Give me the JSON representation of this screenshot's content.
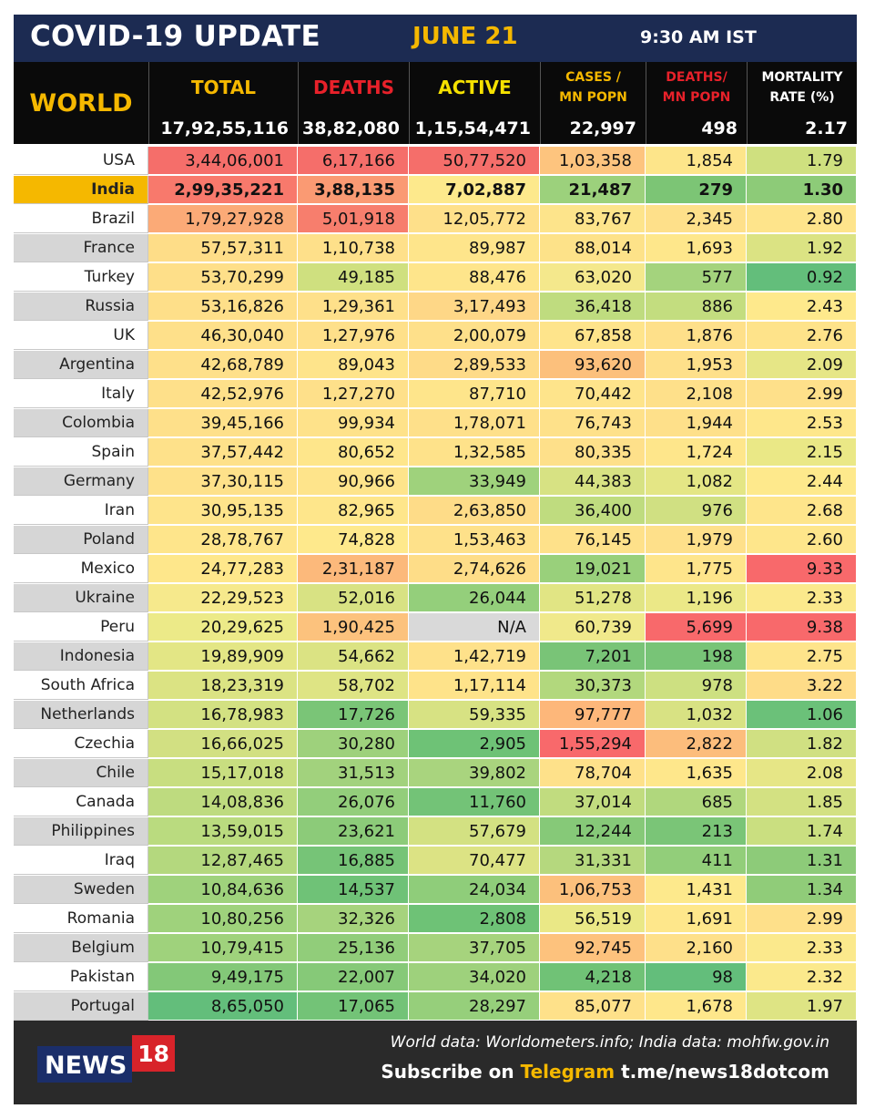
{
  "header": {
    "title": "COVID-19 UPDATE",
    "date": "JUNE 21",
    "time": "9:30 AM IST"
  },
  "world": {
    "label": "WORLD",
    "columns": {
      "total": "TOTAL",
      "deaths": "DEATHS",
      "active": "ACTIVE",
      "cases_mn_1": "CASES /",
      "cases_mn_2": "MN POPN",
      "deaths_mn_1": "DEATHS/",
      "deaths_mn_2": "MN POPN",
      "mortality_1": "MORTALITY",
      "mortality_2": "RATE (%)"
    },
    "values": {
      "total": "17,92,55,116",
      "deaths": "38,82,080",
      "active": "1,15,54,471",
      "cases_mn": "22,997",
      "deaths_mn": "498",
      "mortality": "2.17"
    }
  },
  "rows": [
    {
      "country": "USA",
      "total": "3,44,06,001",
      "deaths": "6,17,166",
      "active": "50,77,520",
      "cases_mn": "1,03,358",
      "deaths_mn": "1,854",
      "mortality": "1.79",
      "bg": [
        "#f56e6a",
        "#f56e6a",
        "#f56e6a",
        "#fdc47e",
        "#fde58a",
        "#cfe07f"
      ]
    },
    {
      "country": "India",
      "total": "2,99,35,221",
      "deaths": "3,88,135",
      "active": "7,02,887",
      "cases_mn": "21,487",
      "deaths_mn": "279",
      "mortality": "1.30",
      "bg": [
        "#f8796c",
        "#fa9a73",
        "#fde98c",
        "#9cd17c",
        "#7cc575",
        "#8dcb78"
      ]
    },
    {
      "country": "Brazil",
      "total": "1,79,27,928",
      "deaths": "5,01,918",
      "active": "12,05,772",
      "cases_mn": "83,767",
      "deaths_mn": "2,345",
      "mortality": "2.80",
      "bg": [
        "#fbaa77",
        "#f77e6d",
        "#fee08a",
        "#fde48b",
        "#fee08a",
        "#fee48b"
      ]
    },
    {
      "country": "France",
      "total": "57,57,311",
      "deaths": "1,10,738",
      "active": "89,987",
      "cases_mn": "88,014",
      "deaths_mn": "1,693",
      "mortality": "1.92",
      "bg": [
        "#fedd88",
        "#fee08a",
        "#fee58b",
        "#fde289",
        "#fee78b",
        "#dbe383"
      ]
    },
    {
      "country": "Turkey",
      "total": "53,70,299",
      "deaths": "49,185",
      "active": "88,476",
      "cases_mn": "63,020",
      "deaths_mn": "577",
      "mortality": "0.92",
      "bg": [
        "#fedf89",
        "#cfe07f",
        "#fee58b",
        "#f4e88c",
        "#a4d37d",
        "#63be7b"
      ]
    },
    {
      "country": "Russia",
      "total": "53,16,826",
      "deaths": "1,29,361",
      "active": "3,17,493",
      "cases_mn": "36,418",
      "deaths_mn": "886",
      "mortality": "2.43",
      "bg": [
        "#fedf89",
        "#fee08a",
        "#fed787",
        "#bfdc7f",
        "#c3dd7f",
        "#fee98c"
      ]
    },
    {
      "country": "UK",
      "total": "46,30,040",
      "deaths": "1,27,976",
      "active": "2,00,079",
      "cases_mn": "67,858",
      "deaths_mn": "1,876",
      "mortality": "2.76",
      "bg": [
        "#fee08a",
        "#fee08a",
        "#fee08a",
        "#fee48b",
        "#fee08a",
        "#fee38a"
      ]
    },
    {
      "country": "Argentina",
      "total": "42,68,789",
      "deaths": "89,043",
      "active": "2,89,533",
      "cases_mn": "93,620",
      "deaths_mn": "1,953",
      "mortality": "2.09",
      "bg": [
        "#fee08a",
        "#fee48b",
        "#fedb88",
        "#fcc07c",
        "#fee08a",
        "#e6e686"
      ]
    },
    {
      "country": "Italy",
      "total": "42,52,976",
      "deaths": "1,27,270",
      "active": "87,710",
      "cases_mn": "70,442",
      "deaths_mn": "2,108",
      "mortality": "2.99",
      "bg": [
        "#fee08a",
        "#fee08a",
        "#fee58b",
        "#fee48b",
        "#fee08a",
        "#fee08a"
      ]
    },
    {
      "country": "Colombia",
      "total": "39,45,166",
      "deaths": "99,934",
      "active": "1,78,071",
      "cases_mn": "76,743",
      "deaths_mn": "1,944",
      "mortality": "2.53",
      "bg": [
        "#fee08a",
        "#fee28a",
        "#fee08a",
        "#fee18a",
        "#fee08a",
        "#fee78b"
      ]
    },
    {
      "country": "Spain",
      "total": "37,57,442",
      "deaths": "80,652",
      "active": "1,32,585",
      "cases_mn": "80,335",
      "deaths_mn": "1,724",
      "mortality": "2.15",
      "bg": [
        "#fee18a",
        "#fee68b",
        "#fee28a",
        "#fee08a",
        "#fee68b",
        "#eae886"
      ]
    },
    {
      "country": "Germany",
      "total": "37,30,115",
      "deaths": "90,966",
      "active": "33,949",
      "cases_mn": "44,383",
      "deaths_mn": "1,082",
      "mortality": "2.44",
      "bg": [
        "#fee18a",
        "#fee48b",
        "#9fd27c",
        "#d7e283",
        "#e4e685",
        "#fee98c"
      ]
    },
    {
      "country": "Iran",
      "total": "30,95,135",
      "deaths": "82,965",
      "active": "2,63,850",
      "cases_mn": "36,400",
      "deaths_mn": "976",
      "mortality": "2.68",
      "bg": [
        "#fee48b",
        "#fee68b",
        "#fedc88",
        "#bfdc7f",
        "#d0e082",
        "#fee58b"
      ]
    },
    {
      "country": "Poland",
      "total": "28,78,767",
      "deaths": "74,828",
      "active": "1,53,463",
      "cases_mn": "76,145",
      "deaths_mn": "1,979",
      "mortality": "2.60",
      "bg": [
        "#fee58b",
        "#fee98c",
        "#fee18a",
        "#fee18a",
        "#fee08a",
        "#fee68b"
      ]
    },
    {
      "country": "Mexico",
      "total": "24,77,283",
      "deaths": "2,31,187",
      "active": "2,74,626",
      "cases_mn": "19,021",
      "deaths_mn": "1,775",
      "mortality": "9.33",
      "bg": [
        "#fee78b",
        "#fcb97b",
        "#fedd88",
        "#99d07b",
        "#fee58b",
        "#f8696b"
      ]
    },
    {
      "country": "Ukraine",
      "total": "22,29,523",
      "deaths": "52,016",
      "active": "26,044",
      "cases_mn": "51,278",
      "deaths_mn": "1,196",
      "mortality": "2.33",
      "bg": [
        "#f6e98c",
        "#d8e283",
        "#94cf7b",
        "#e1e584",
        "#ebe887",
        "#fbe98c"
      ]
    },
    {
      "country": "Peru",
      "total": "20,29,625",
      "deaths": "1,90,425",
      "active": "N/A",
      "cases_mn": "60,739",
      "deaths_mn": "5,699",
      "mortality": "9.38",
      "bg": [
        "#ecea88",
        "#fcc27d",
        "#d9d9d9",
        "#f0e98b",
        "#f8696b",
        "#f8696b"
      ]
    },
    {
      "country": "Indonesia",
      "total": "19,89,909",
      "deaths": "54,662",
      "active": "1,42,719",
      "cases_mn": "7,201",
      "deaths_mn": "198",
      "mortality": "2.75",
      "bg": [
        "#e3e685",
        "#dbe383",
        "#fee18a",
        "#79c477",
        "#78c477",
        "#fee48b"
      ]
    },
    {
      "country": "South Africa",
      "total": "18,23,319",
      "deaths": "58,702",
      "active": "1,17,114",
      "cases_mn": "30,373",
      "deaths_mn": "978",
      "mortality": "3.22",
      "bg": [
        "#dbe383",
        "#dee484",
        "#fee38a",
        "#b2d87d",
        "#cde081",
        "#fedc88"
      ]
    },
    {
      "country": "Netherlands",
      "total": "16,78,983",
      "deaths": "17,726",
      "active": "59,335",
      "cases_mn": "97,777",
      "deaths_mn": "1,032",
      "mortality": "1.06",
      "bg": [
        "#d3e182",
        "#7ac577",
        "#d7e283",
        "#fdb77a",
        "#d8e283",
        "#6bc179"
      ]
    },
    {
      "country": "Czechia",
      "total": "16,66,025",
      "deaths": "30,280",
      "active": "2,905",
      "cases_mn": "1,55,294",
      "deaths_mn": "2,822",
      "mortality": "1.82",
      "bg": [
        "#d2e082",
        "#9ed17c",
        "#6ec276",
        "#f8696b",
        "#fcbd7c",
        "#d0e082"
      ]
    },
    {
      "country": "Chile",
      "total": "15,17,018",
      "deaths": "31,513",
      "active": "39,802",
      "cases_mn": "78,704",
      "deaths_mn": "1,635",
      "mortality": "2.08",
      "bg": [
        "#c8de80",
        "#a2d27d",
        "#a9d47e",
        "#fee18a",
        "#fee78b",
        "#e6e686"
      ]
    },
    {
      "country": "Canada",
      "total": "14,08,836",
      "deaths": "26,076",
      "active": "11,760",
      "cases_mn": "37,014",
      "deaths_mn": "685",
      "mortality": "1.85",
      "bg": [
        "#bedb7f",
        "#93ce7b",
        "#73c377",
        "#c1dc7f",
        "#b0d77d",
        "#d3e182"
      ]
    },
    {
      "country": "Philippines",
      "total": "13,59,015",
      "deaths": "23,621",
      "active": "57,679",
      "cases_mn": "12,244",
      "deaths_mn": "213",
      "mortality": "1.74",
      "bg": [
        "#badb7f",
        "#8ccb79",
        "#d3e182",
        "#86c978",
        "#7ac577",
        "#cadf80"
      ]
    },
    {
      "country": "Iraq",
      "total": "12,87,465",
      "deaths": "16,885",
      "active": "70,477",
      "cases_mn": "31,331",
      "deaths_mn": "411",
      "mortality": "1.31",
      "bg": [
        "#b4d87e",
        "#76c477",
        "#dce384",
        "#b5d87e",
        "#92ce7a",
        "#8dcb79"
      ]
    },
    {
      "country": "Sweden",
      "total": "10,84,636",
      "deaths": "14,537",
      "active": "24,034",
      "cases_mn": "1,06,753",
      "deaths_mn": "1,431",
      "mortality": "1.34",
      "bg": [
        "#9fd27c",
        "#6fc277",
        "#8fcd7a",
        "#fcc07c",
        "#fde98c",
        "#90cc79"
      ]
    },
    {
      "country": "Romania",
      "total": "10,80,256",
      "deaths": "32,326",
      "active": "2,808",
      "cases_mn": "56,519",
      "deaths_mn": "1,691",
      "mortality": "2.99",
      "bg": [
        "#9fd27c",
        "#a6d37d",
        "#6ec276",
        "#eae886",
        "#fee78b",
        "#fee08a"
      ]
    },
    {
      "country": "Belgium",
      "total": "10,79,415",
      "deaths": "25,136",
      "active": "37,705",
      "cases_mn": "92,745",
      "deaths_mn": "2,160",
      "mortality": "2.33",
      "bg": [
        "#9fd27c",
        "#91cd7a",
        "#a6d37d",
        "#fdc27d",
        "#fee08a",
        "#fbe98c"
      ]
    },
    {
      "country": "Pakistan",
      "total": "9,49,175",
      "deaths": "22,007",
      "active": "34,020",
      "cases_mn": "4,218",
      "deaths_mn": "98",
      "mortality": "2.32",
      "bg": [
        "#83c878",
        "#86c978",
        "#9ed17c",
        "#70c276",
        "#63be7b",
        "#fbe98c"
      ]
    },
    {
      "country": "Portugal",
      "total": "8,65,050",
      "deaths": "17,065",
      "active": "28,297",
      "cases_mn": "85,077",
      "deaths_mn": "1,678",
      "mortality": "1.97",
      "bg": [
        "#63be7b",
        "#73c377",
        "#96cf7b",
        "#fee18a",
        "#fee78b",
        "#dee484"
      ]
    }
  ],
  "footer": {
    "logo_text": "NEWS",
    "logo_number": "18",
    "sources": "World data: Worldometers.info; India data: mohfw.gov.in",
    "subscribe_prefix": "Subscribe on",
    "subscribe_platform": "Telegram",
    "subscribe_link": "t.me/news18dotcom"
  },
  "colors": {
    "navy": "#1c2b52",
    "gold": "#f5b800",
    "deaths_red": "#e8212a",
    "india_highlight": "#f5b800"
  }
}
